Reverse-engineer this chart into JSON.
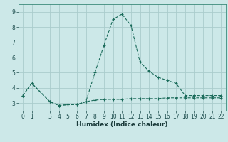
{
  "title": "",
  "xlabel": "Humidex (Indice chaleur)",
  "ylabel": "",
  "bg_color": "#cce8e8",
  "grid_color": "#aacccc",
  "line_color": "#1a6b5a",
  "xlim": [
    -0.5,
    22.5
  ],
  "ylim": [
    2.5,
    9.5
  ],
  "xticks": [
    0,
    1,
    3,
    4,
    5,
    6,
    7,
    8,
    9,
    10,
    11,
    12,
    13,
    14,
    15,
    16,
    17,
    18,
    19,
    20,
    21,
    22
  ],
  "yticks": [
    3,
    4,
    5,
    6,
    7,
    8,
    9
  ],
  "line1_x": [
    0,
    1,
    3,
    4,
    5,
    6,
    7,
    8,
    9,
    10,
    11,
    12,
    13,
    14,
    15,
    16,
    17,
    18,
    19,
    20,
    21,
    22
  ],
  "line1_y": [
    3.5,
    4.3,
    3.1,
    2.85,
    2.9,
    2.9,
    3.1,
    5.0,
    6.8,
    8.5,
    8.85,
    8.1,
    5.7,
    5.1,
    4.7,
    4.5,
    4.3,
    3.5,
    3.5,
    3.5,
    3.5,
    3.5
  ],
  "line2_x": [
    0,
    1,
    3,
    4,
    5,
    6,
    7,
    8,
    9,
    10,
    11,
    12,
    13,
    14,
    15,
    16,
    17,
    18,
    19,
    20,
    21,
    22
  ],
  "line2_y": [
    3.5,
    4.3,
    3.1,
    2.85,
    2.9,
    2.9,
    3.1,
    3.2,
    3.25,
    3.25,
    3.25,
    3.3,
    3.3,
    3.3,
    3.3,
    3.35,
    3.35,
    3.35,
    3.35,
    3.35,
    3.35,
    3.35
  ],
  "figsize": [
    3.2,
    2.0
  ],
  "dpi": 100,
  "tick_fontsize": 5.5,
  "xlabel_fontsize": 6.5
}
